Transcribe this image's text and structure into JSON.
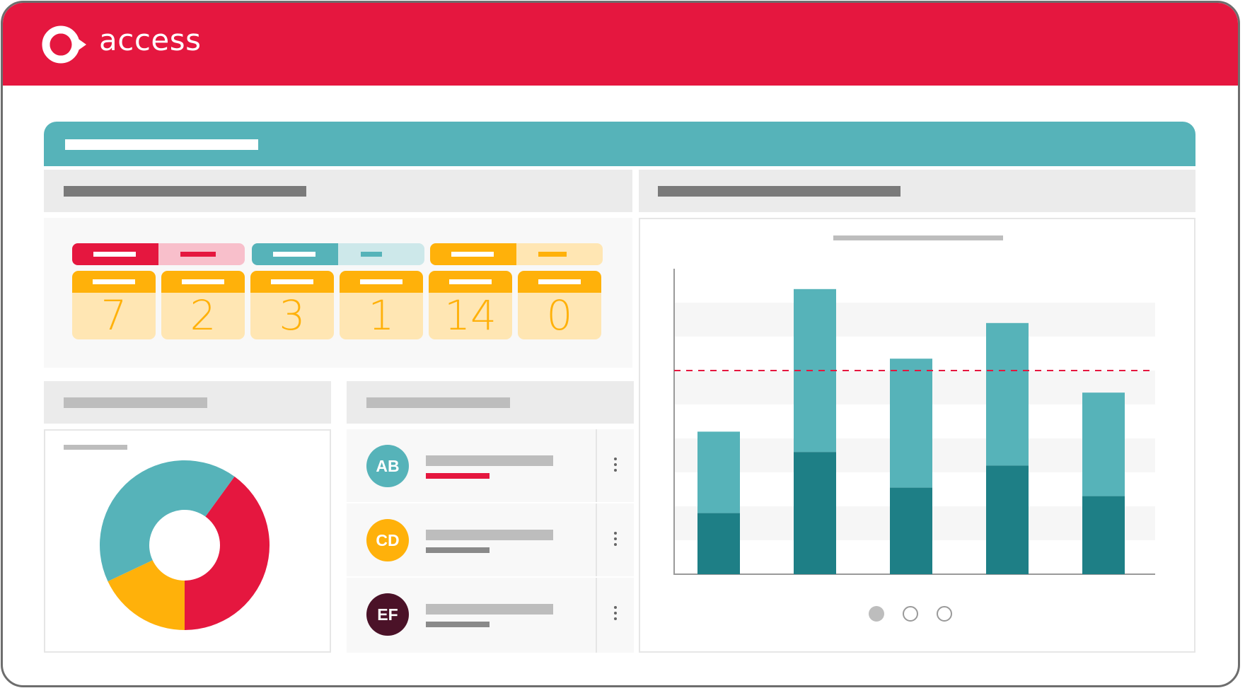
{
  "brand": {
    "name": "access",
    "color": "#e5173f",
    "logo_icon": "access-logo-icon"
  },
  "colors": {
    "teal": "#56b3b9",
    "dark_teal": "#1e7f86",
    "red": "#e5173f",
    "amber": "#ffb10a",
    "plum": "#4b1228"
  },
  "status_tags": [
    {
      "color": "#e5173f",
      "tint": "#f8bfcb"
    },
    {
      "color": "#56b3b9",
      "tint": "#cde8ea"
    },
    {
      "color": "#ffb10a",
      "tint": "#ffe6b3"
    }
  ],
  "stats": {
    "values": [
      "7",
      "2",
      "3",
      "1",
      "14",
      "0"
    ]
  },
  "people": [
    {
      "initials": "AB",
      "color": "#56b3b9",
      "accent": "#e5173f"
    },
    {
      "initials": "CD",
      "color": "#ffb10a",
      "accent": "#8a8a8a"
    },
    {
      "initials": "EF",
      "color": "#4b1228",
      "accent": "#8a8a8a"
    }
  ],
  "donut": {
    "segments": [
      {
        "value": 40,
        "color": "#e5173f"
      },
      {
        "value": 18,
        "color": "#ffb10a"
      },
      {
        "value": 42,
        "color": "#56b3b9"
      }
    ]
  },
  "chart_data": {
    "type": "bar",
    "stacked": true,
    "categories": [
      "",
      "",
      "",
      "",
      ""
    ],
    "series": [
      {
        "color": "#1e7f86",
        "values": [
          1.8,
          3.6,
          2.55,
          3.2,
          2.3
        ]
      },
      {
        "color": "#56b3b9",
        "values": [
          2.4,
          4.8,
          3.8,
          4.2,
          3.05
        ]
      }
    ],
    "ylim": [
      0,
      9
    ],
    "reference_line": 6,
    "grid": true
  },
  "carousel": {
    "count": 3,
    "active": 0
  }
}
